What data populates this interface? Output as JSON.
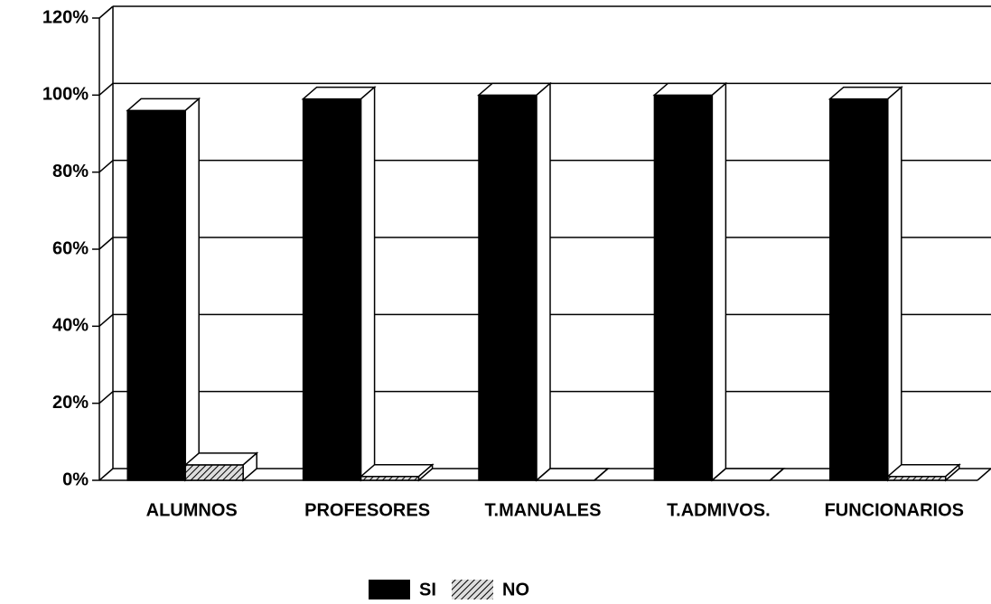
{
  "chart_data": {
    "type": "bar3d",
    "categories": [
      "ALUMNOS",
      "PROFESORES",
      "T.MANUALES",
      "T.ADMIVOS.",
      "FUNCIONARIOS"
    ],
    "series": [
      {
        "name": "SI",
        "color": "#000000",
        "values": [
          96,
          99,
          100,
          100,
          99
        ]
      },
      {
        "name": "NO",
        "color": "hatch",
        "values": [
          4,
          1,
          0,
          0,
          1
        ]
      }
    ],
    "ylim": [
      0,
      120
    ],
    "yticks": [
      {
        "value": 0,
        "label": "0%"
      },
      {
        "value": 20,
        "label": "20%"
      },
      {
        "value": 40,
        "label": "40%"
      },
      {
        "value": 60,
        "label": "60%"
      },
      {
        "value": 80,
        "label": "80%"
      },
      {
        "value": 100,
        "label": "100%"
      },
      {
        "value": 120,
        "label": "120%"
      }
    ],
    "grid": true,
    "legend": "bottom"
  }
}
